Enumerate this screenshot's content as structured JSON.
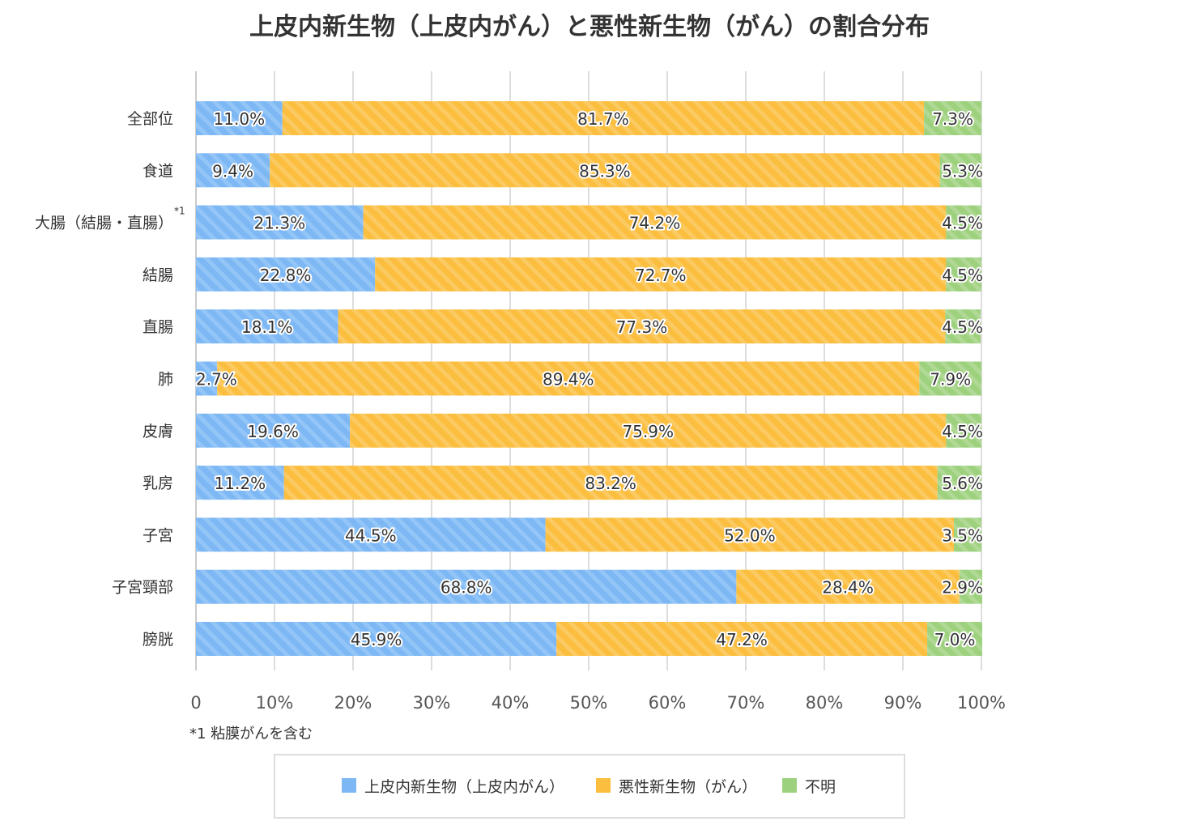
{
  "chart_data": {
    "type": "bar",
    "orientation": "horizontal",
    "stacked": true,
    "title": "上皮内新生物（上皮内がん）と悪性新生物（がん）の割合分布",
    "categories": [
      "全部位",
      "食道",
      "大腸（結腸・直腸）",
      "結腸",
      "直腸",
      "肺",
      "皮膚",
      "乳房",
      "子宮",
      "子宮頸部",
      "膀胱"
    ],
    "category_notes": [
      "",
      "",
      "*1",
      "",
      "",
      "",
      "",
      "",
      "",
      "",
      ""
    ],
    "series": [
      {
        "name": "上皮内新生物（上皮内がん）",
        "color": "#7db8f5",
        "values": [
          11.0,
          9.4,
          21.3,
          22.8,
          18.1,
          2.7,
          19.6,
          11.2,
          44.5,
          68.8,
          45.9
        ],
        "labels": [
          "11.0%",
          "9.4%",
          "21.3%",
          "22.8%",
          "18.1%",
          "2.7%",
          "19.6%",
          "11.2%",
          "44.5%",
          "68.8%",
          "45.9%"
        ]
      },
      {
        "name": "悪性新生物（がん）",
        "color": "#fbbe3f",
        "values": [
          81.7,
          85.3,
          74.2,
          72.7,
          77.3,
          89.4,
          75.9,
          83.2,
          52.0,
          28.4,
          47.2
        ],
        "labels": [
          "81.7%",
          "85.3%",
          "74.2%",
          "72.7%",
          "77.3%",
          "89.4%",
          "75.9%",
          "83.2%",
          "52.0%",
          "28.4%",
          "47.2%"
        ]
      },
      {
        "name": "不明",
        "color": "#9ed17e",
        "values": [
          7.3,
          5.3,
          4.5,
          4.5,
          4.5,
          7.9,
          4.5,
          5.6,
          3.5,
          2.9,
          7.0
        ],
        "labels": [
          "7.3%",
          "5.3%",
          "4.5%",
          "4.5%",
          "4.5%",
          "7.9%",
          "4.5%",
          "5.6%",
          "3.5%",
          "2.9%",
          "7.0%"
        ]
      }
    ],
    "xlim": [
      0,
      100
    ],
    "x_ticks": [
      0,
      10,
      20,
      30,
      40,
      50,
      60,
      70,
      80,
      90,
      100
    ],
    "x_tick_labels": [
      "0",
      "10%",
      "20%",
      "30%",
      "40%",
      "50%",
      "60%",
      "70%",
      "80%",
      "90%",
      "100%"
    ],
    "grid": true,
    "legend_position": "bottom",
    "footnote": "*1 粘膜がんを含む"
  }
}
